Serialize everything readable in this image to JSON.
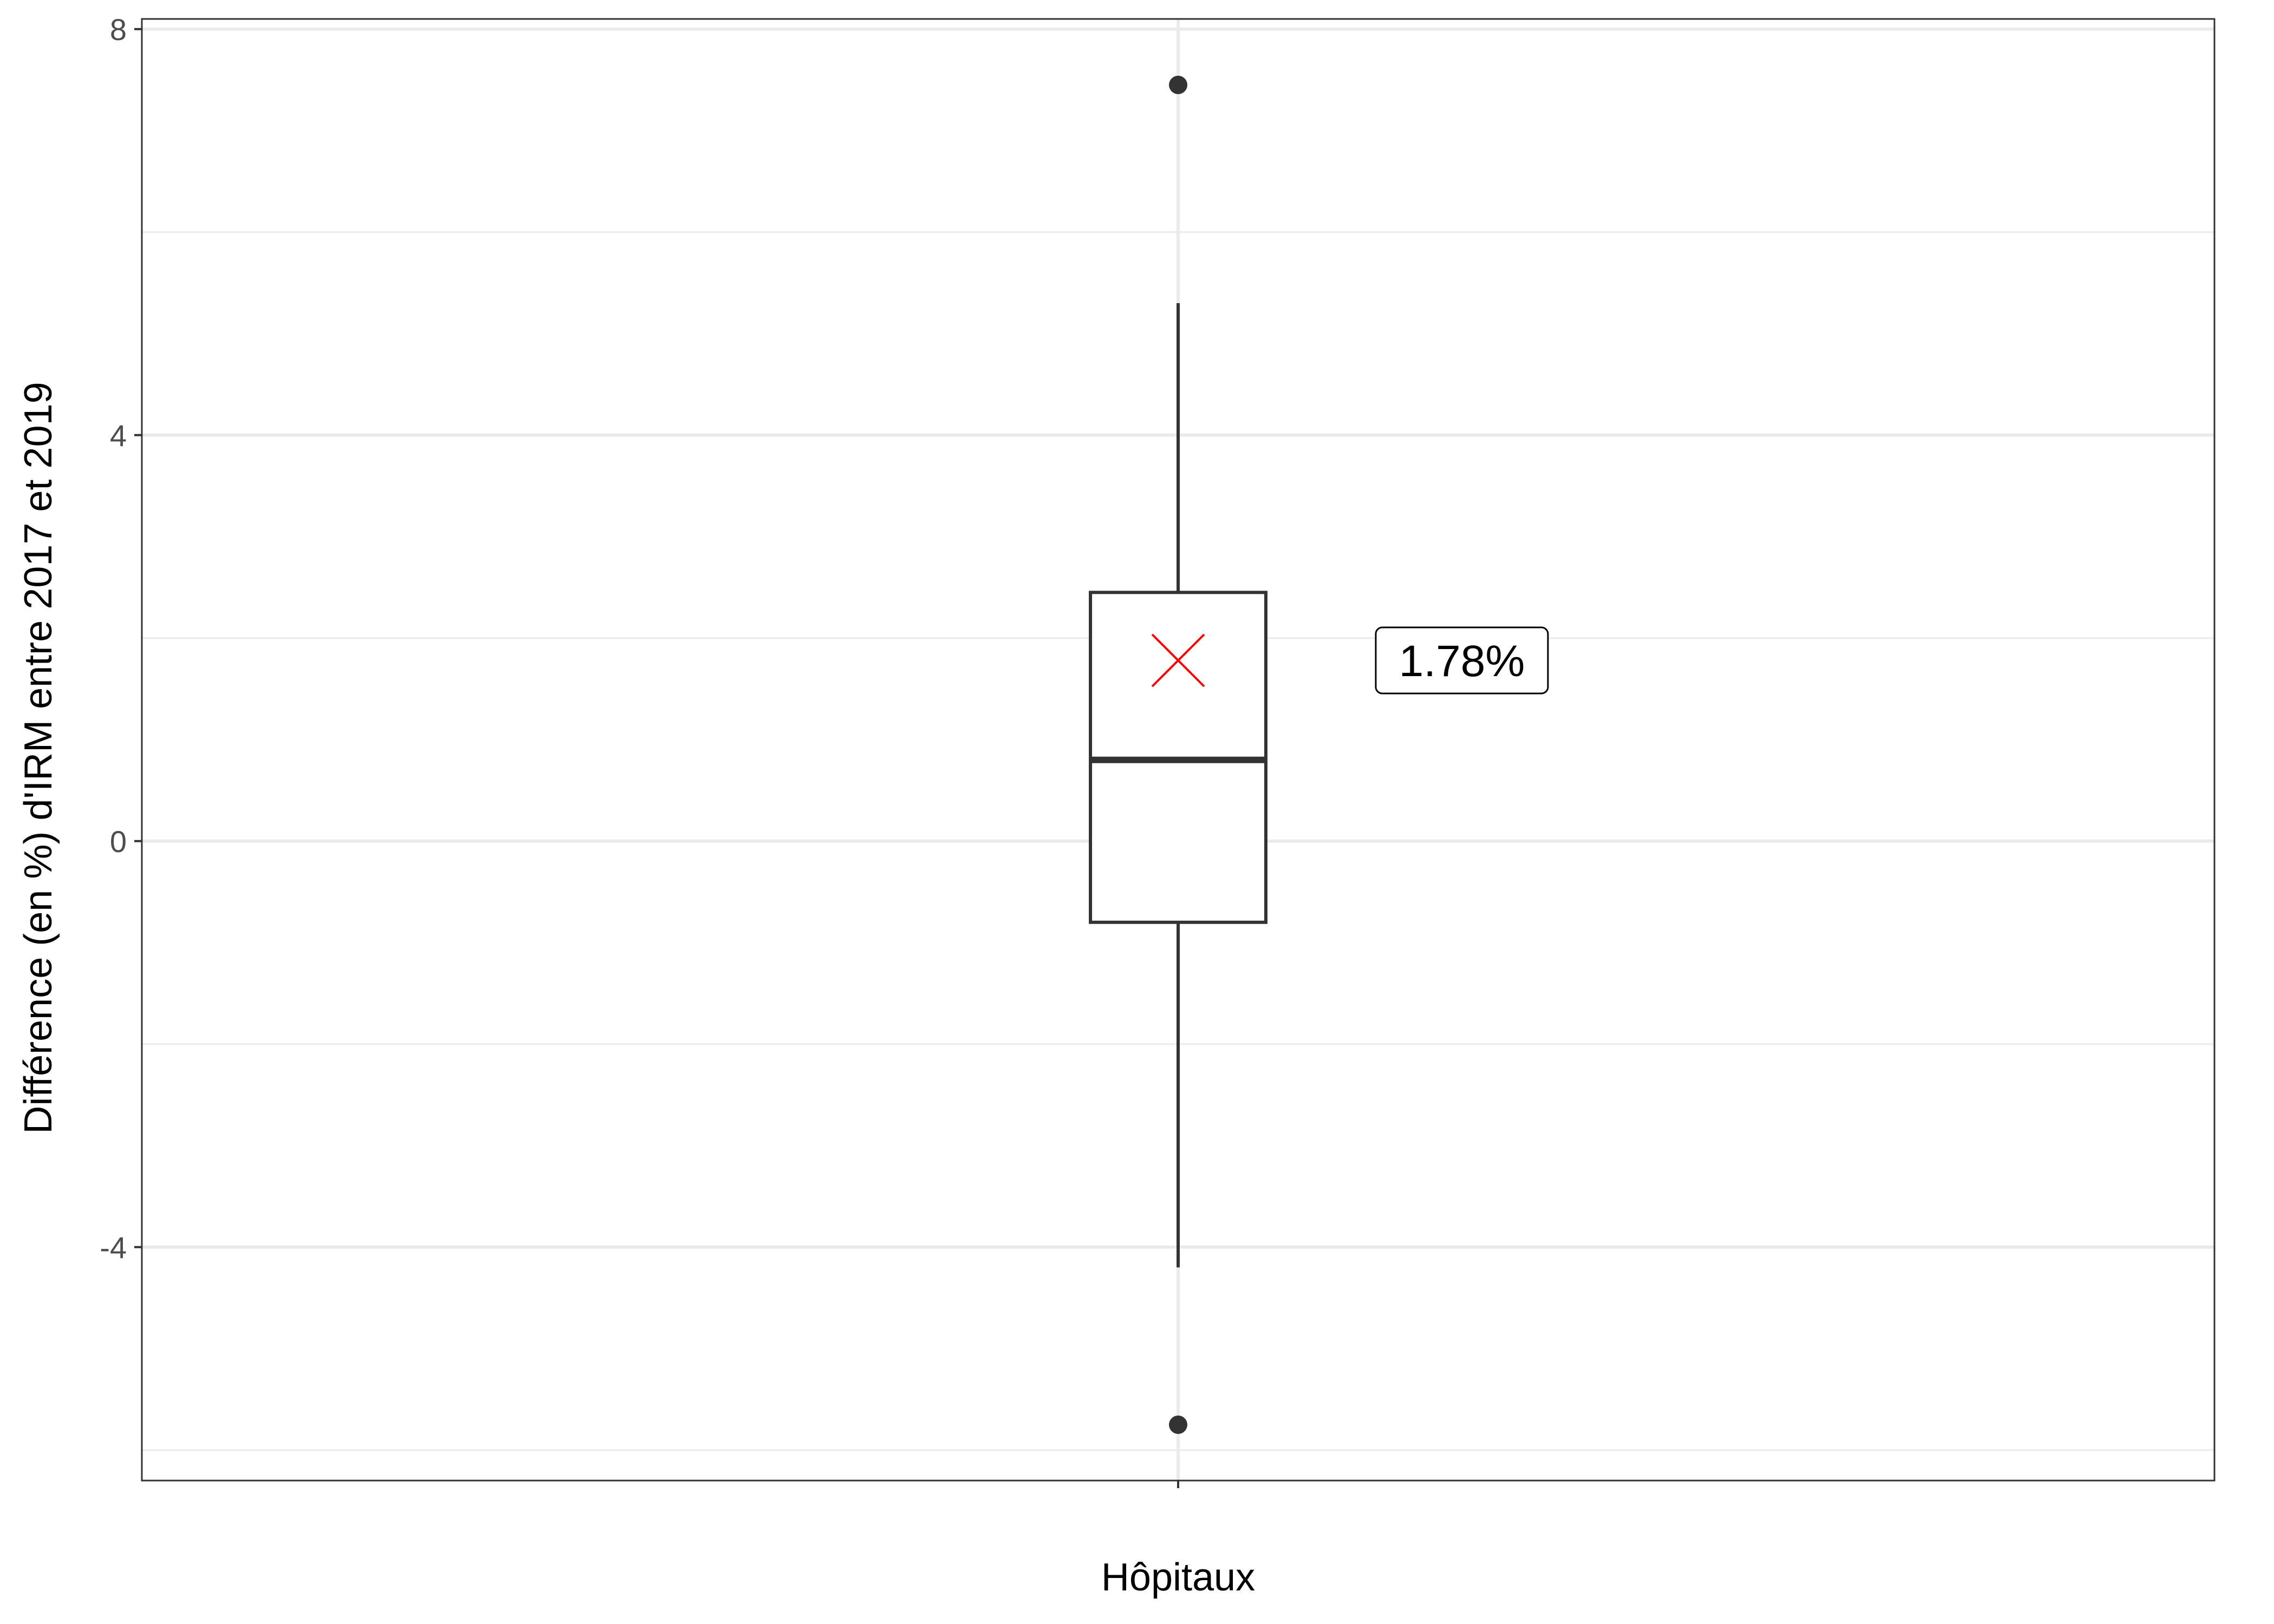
{
  "chart_data": {
    "type": "boxplot",
    "title": "",
    "xlabel": "Hôpitaux",
    "ylabel": "Différence (en %) d'IRM entre 2017 et 2019",
    "ylim": [
      -6.3,
      8.1
    ],
    "yticks": [
      -4,
      0,
      4,
      8
    ],
    "categories": [
      "Hôpitaux"
    ],
    "boxes": [
      {
        "category": "Hôpitaux",
        "q1": -0.8,
        "median": 0.8,
        "q3": 2.45,
        "whisker_low": -4.2,
        "whisker_high": 5.3,
        "outliers": [
          7.45,
          -5.75
        ],
        "mean": 1.78,
        "mean_label": "1.78%"
      }
    ],
    "grid": true,
    "colors": {
      "box_stroke": "#333333",
      "mean_marker": "#ff0000",
      "grid": "#ebebeb",
      "panel_border": "#333333"
    }
  }
}
